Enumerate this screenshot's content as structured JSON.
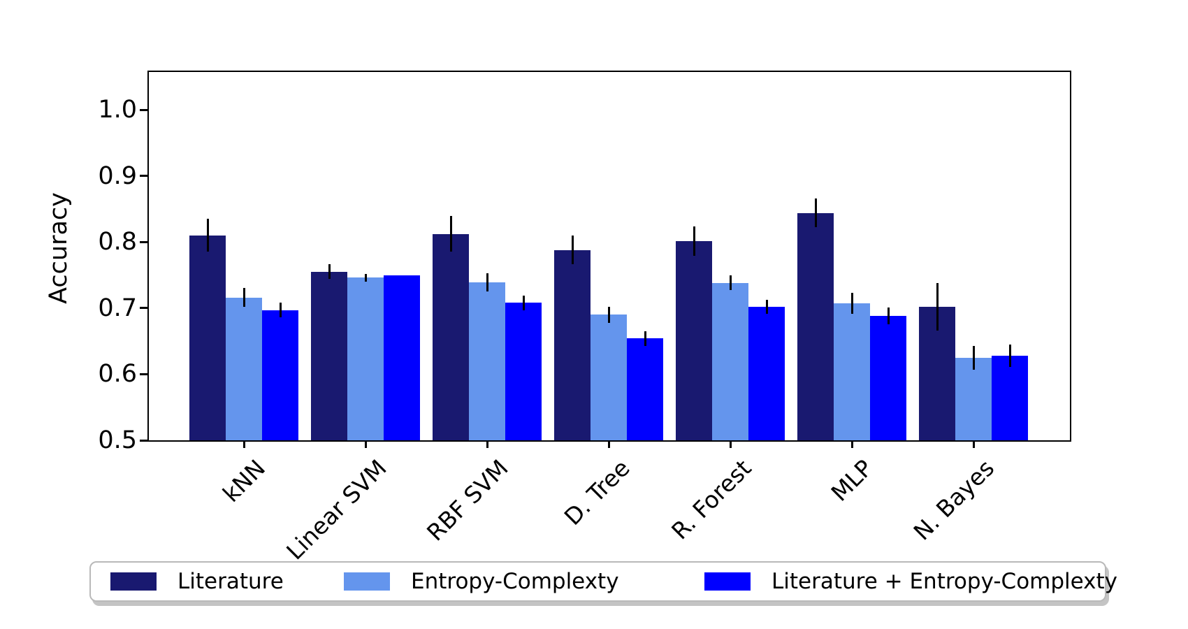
{
  "figure": {
    "background": "#ffffff"
  },
  "chart_data": {
    "type": "bar",
    "title": "",
    "xlabel": "",
    "ylabel": "Accuracy",
    "categories": [
      "kNN",
      "Linear SVM",
      "RBF SVM",
      "D. Tree",
      "R. Forest",
      "MLP",
      "N. Bayes"
    ],
    "series": [
      {
        "name": "Literature",
        "color": "#191970",
        "values": [
          0.81,
          0.755,
          0.812,
          0.788,
          0.801,
          0.844,
          0.702
        ],
        "errors": [
          0.025,
          0.011,
          0.027,
          0.022,
          0.022,
          0.022,
          0.036
        ]
      },
      {
        "name": "Entropy-Complexty",
        "color": "#6495ED",
        "values": [
          0.716,
          0.746,
          0.739,
          0.69,
          0.738,
          0.707,
          0.625
        ],
        "errors": [
          0.014,
          0.006,
          0.014,
          0.012,
          0.011,
          0.016,
          0.018
        ]
      },
      {
        "name": "Literature + Entropy-Complexty",
        "color": "#0000FF",
        "values": [
          0.697,
          0.75,
          0.708,
          0.654,
          0.702,
          0.688,
          0.628
        ],
        "errors": [
          0.011,
          0.0,
          0.011,
          0.011,
          0.011,
          0.013,
          0.017
        ]
      }
    ],
    "error_bars": true,
    "error_bar_color": "#000000",
    "ylim": [
      0.5,
      1.06
    ],
    "yticks_values": [
      0.5,
      0.6,
      0.7,
      0.8,
      0.9,
      1.0
    ],
    "yticks_labels": [
      "0.5",
      "0.6",
      "0.7",
      "0.8",
      "0.9",
      "1.0"
    ],
    "grid": false,
    "legend_position": "bottom",
    "spines": "box",
    "axis_color": "#000000"
  }
}
